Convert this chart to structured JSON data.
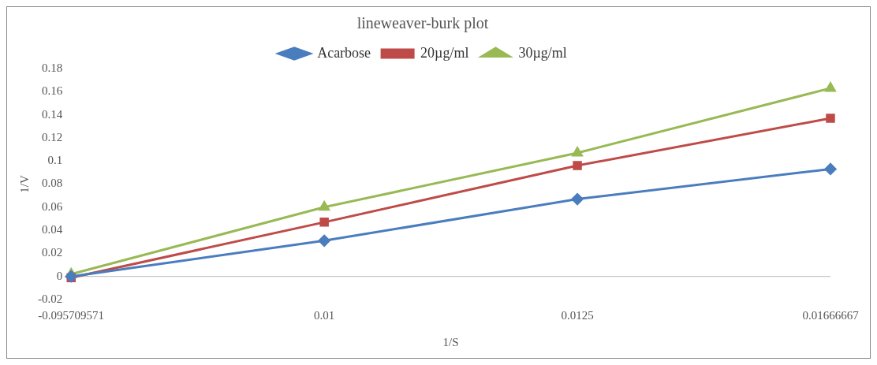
{
  "chart_data": {
    "type": "line",
    "title": "lineweaver-burk plot",
    "xlabel": "1/S",
    "ylabel": "1/V",
    "categories": [
      "-0.095709571",
      "0.01",
      "0.0125",
      "0.01666667"
    ],
    "ylim": [
      -0.02,
      0.18
    ],
    "yticks": [
      -0.02,
      0,
      0.02,
      0.04,
      0.06,
      0.08,
      0.1,
      0.12,
      0.14,
      0.16,
      0.18
    ],
    "grid": false,
    "ref_lines": [
      {
        "axis": "y",
        "value": 0,
        "color": "#bbbbbb"
      }
    ],
    "legend": "top",
    "line_style": "solid",
    "series": [
      {
        "name": "Acarbose",
        "color": "#4a7dbe",
        "marker": "diamond",
        "values": [
          0,
          0.031,
          0.067,
          0.093
        ]
      },
      {
        "name": "20µg/ml",
        "color": "#be4b48",
        "marker": "square",
        "values": [
          -0.001,
          0.047,
          0.096,
          0.137
        ]
      },
      {
        "name": "30µg/ml",
        "color": "#98b954",
        "marker": "triangle",
        "values": [
          0.002,
          0.06,
          0.107,
          0.163
        ]
      }
    ]
  }
}
